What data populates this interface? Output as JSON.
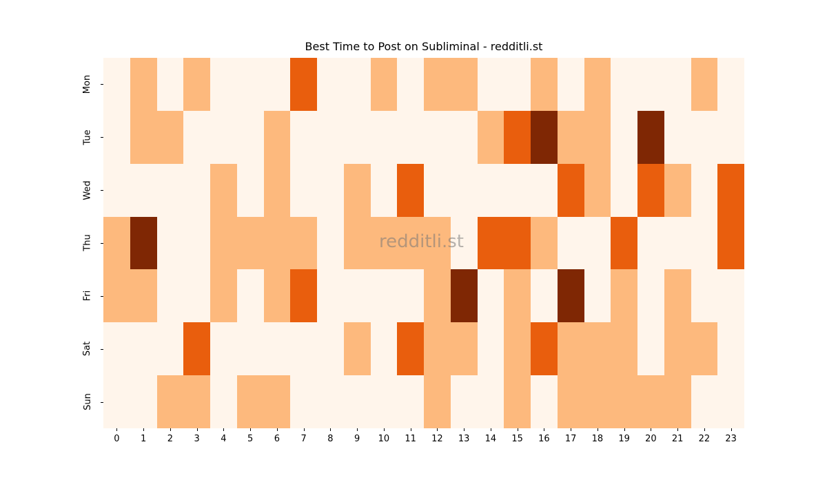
{
  "chart_data": {
    "type": "heatmap",
    "title": "Best Time to Post on Subliminal - redditli.st",
    "xlabel": "",
    "ylabel": "",
    "x": [
      "0",
      "1",
      "2",
      "3",
      "4",
      "5",
      "6",
      "7",
      "8",
      "9",
      "10",
      "11",
      "12",
      "13",
      "14",
      "15",
      "16",
      "17",
      "18",
      "19",
      "20",
      "21",
      "22",
      "23"
    ],
    "y": [
      "Mon",
      "Tue",
      "Wed",
      "Thu",
      "Fri",
      "Sat",
      "Sun"
    ],
    "colormap": "Oranges",
    "colors": [
      "#fff5eb",
      "#fdb97d",
      "#e95e0d",
      "#7f2704"
    ],
    "values": [
      [
        0,
        1,
        0,
        1,
        0,
        0,
        0,
        2,
        0,
        0,
        1,
        0,
        1,
        1,
        0,
        0,
        1,
        0,
        1,
        0,
        0,
        0,
        1,
        0
      ],
      [
        0,
        1,
        1,
        0,
        0,
        0,
        1,
        0,
        0,
        0,
        0,
        0,
        0,
        0,
        1,
        2,
        3,
        1,
        1,
        0,
        3,
        0,
        0,
        0
      ],
      [
        0,
        0,
        0,
        0,
        1,
        0,
        1,
        0,
        0,
        1,
        0,
        2,
        0,
        0,
        0,
        0,
        0,
        2,
        1,
        0,
        2,
        1,
        0,
        2
      ],
      [
        1,
        3,
        0,
        0,
        1,
        1,
        1,
        1,
        0,
        1,
        1,
        1,
        1,
        0,
        2,
        2,
        1,
        0,
        0,
        2,
        0,
        0,
        0,
        2
      ],
      [
        1,
        1,
        0,
        0,
        1,
        0,
        1,
        2,
        0,
        0,
        0,
        0,
        1,
        3,
        0,
        1,
        0,
        3,
        0,
        1,
        0,
        1,
        0,
        0
      ],
      [
        0,
        0,
        0,
        2,
        0,
        0,
        0,
        0,
        0,
        1,
        0,
        2,
        1,
        1,
        0,
        1,
        2,
        1,
        1,
        1,
        0,
        1,
        1,
        0
      ],
      [
        0,
        0,
        1,
        1,
        0,
        1,
        1,
        0,
        0,
        0,
        0,
        0,
        1,
        0,
        0,
        1,
        0,
        1,
        1,
        1,
        1,
        1,
        0,
        0
      ]
    ],
    "watermark": "redditli.st",
    "colorbar": false
  }
}
